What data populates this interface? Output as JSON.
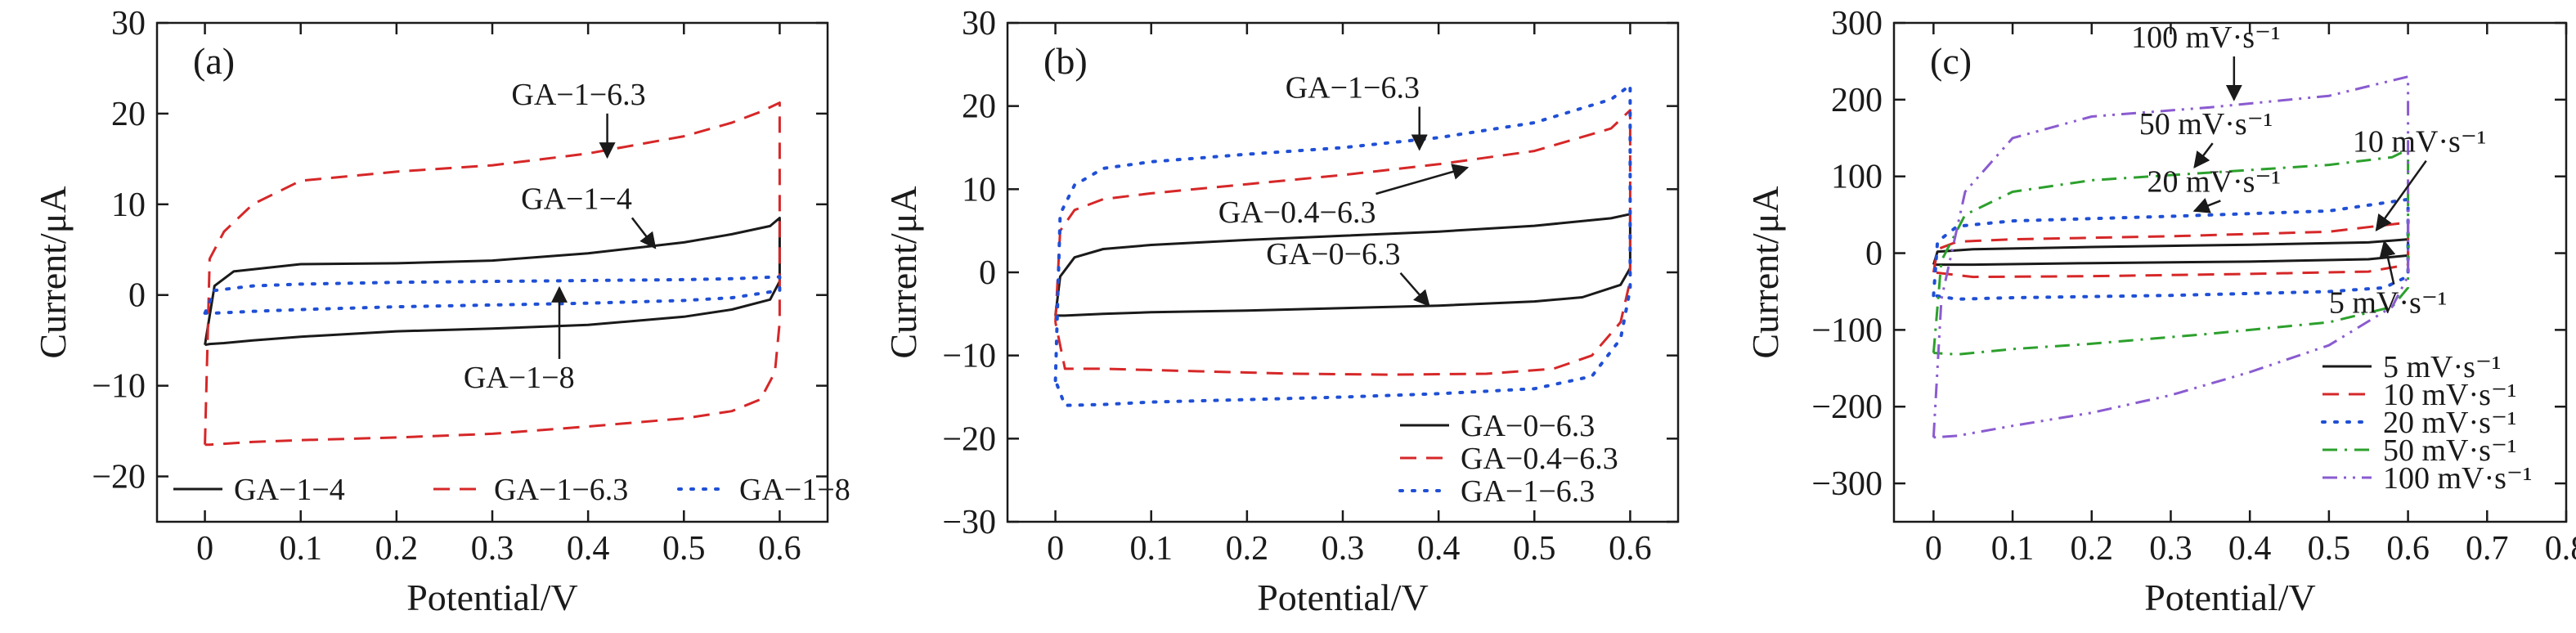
{
  "chart_data": [
    {
      "type": "line",
      "panel": "(a)",
      "xlabel": "Potential/V",
      "ylabel": "Current/μA",
      "xlim": [
        -0.05,
        0.65
      ],
      "ylim": [
        -25,
        30
      ],
      "xticks": [
        0,
        0.1,
        0.2,
        0.3,
        0.4,
        0.5,
        0.6
      ],
      "xtick_labels": [
        "0",
        "0.1",
        "0.2",
        "0.3",
        "0.4",
        "0.5",
        "0.6"
      ],
      "yticks": [
        -20,
        -10,
        0,
        10,
        20,
        30
      ],
      "ytick_labels": [
        "−20",
        "−10",
        "0",
        "10",
        "20",
        "30"
      ],
      "legend_position": "bottom",
      "series": [
        {
          "name": "GA−1−4",
          "color": "#1a1a1a",
          "dash": "solid",
          "x": [
            0,
            0.01,
            0.03,
            0.1,
            0.2,
            0.3,
            0.4,
            0.5,
            0.55,
            0.59,
            0.6,
            0.6,
            0.59,
            0.55,
            0.5,
            0.4,
            0.3,
            0.2,
            0.1,
            0.05,
            0.02,
            0.005,
            0
          ],
          "y": [
            -5.5,
            1.0,
            2.6,
            3.4,
            3.5,
            3.8,
            4.6,
            5.8,
            6.7,
            7.6,
            8.5,
            1.5,
            -0.5,
            -1.6,
            -2.4,
            -3.3,
            -3.7,
            -4.0,
            -4.6,
            -5.0,
            -5.3,
            -5.4,
            -5.5
          ]
        },
        {
          "name": "GA−1−6.3",
          "color": "#d62728",
          "dash": "dashed",
          "x": [
            0,
            0.005,
            0.02,
            0.05,
            0.1,
            0.2,
            0.3,
            0.4,
            0.5,
            0.55,
            0.58,
            0.6,
            0.6,
            0.595,
            0.58,
            0.55,
            0.5,
            0.4,
            0.3,
            0.2,
            0.1,
            0.05,
            0.02,
            0.005,
            0
          ],
          "y": [
            -16.5,
            4.0,
            7.0,
            10.0,
            12.6,
            13.6,
            14.3,
            15.6,
            17.5,
            19.0,
            20.2,
            21.2,
            -3.0,
            -8.5,
            -11.5,
            -12.8,
            -13.6,
            -14.5,
            -15.3,
            -15.7,
            -16.0,
            -16.2,
            -16.4,
            -16.5,
            -16.5
          ]
        },
        {
          "name": "GA−1−8",
          "color": "#1f4fd6",
          "dash": "dotted",
          "x": [
            0,
            0.01,
            0.05,
            0.1,
            0.2,
            0.3,
            0.4,
            0.5,
            0.55,
            0.6,
            0.6,
            0.55,
            0.5,
            0.4,
            0.3,
            0.2,
            0.1,
            0.05,
            0.01,
            0
          ],
          "y": [
            -2.0,
            0.5,
            1.0,
            1.2,
            1.4,
            1.5,
            1.6,
            1.7,
            1.8,
            2.0,
            0.5,
            -0.3,
            -0.6,
            -0.9,
            -1.1,
            -1.3,
            -1.6,
            -1.8,
            -2.0,
            -2.0
          ]
        }
      ],
      "annotations": [
        {
          "text": "GA−1−6.3",
          "x": 0.32,
          "y": 21.0,
          "arrow_to": [
            0.42,
            15.2
          ]
        },
        {
          "text": "GA−1−4",
          "x": 0.33,
          "y": 9.5,
          "arrow_to": [
            0.47,
            5.2
          ]
        },
        {
          "text": "GA−1−8",
          "x": 0.27,
          "y": -10.2,
          "arrow_to": [
            0.37,
            0.8
          ]
        }
      ]
    },
    {
      "type": "line",
      "panel": "(b)",
      "xlabel": "Potential/V",
      "ylabel": "Current/μA",
      "xlim": [
        -0.05,
        0.65
      ],
      "ylim": [
        -30,
        30
      ],
      "xticks": [
        0,
        0.1,
        0.2,
        0.3,
        0.4,
        0.5,
        0.6
      ],
      "xtick_labels": [
        "0",
        "0.1",
        "0.2",
        "0.3",
        "0.4",
        "0.5",
        "0.6"
      ],
      "yticks": [
        -30,
        -20,
        -10,
        0,
        10,
        20,
        30
      ],
      "ytick_labels": [
        "−30",
        "−20",
        "−10",
        "0",
        "10",
        "20",
        "30"
      ],
      "legend_position": "bottom-right",
      "series": [
        {
          "name": "GA−0−6.3",
          "color": "#1a1a1a",
          "dash": "solid",
          "x": [
            0,
            0.005,
            0.02,
            0.05,
            0.1,
            0.2,
            0.3,
            0.4,
            0.5,
            0.58,
            0.6,
            0.6,
            0.59,
            0.55,
            0.5,
            0.4,
            0.3,
            0.2,
            0.1,
            0.05,
            0.01,
            0
          ],
          "y": [
            -5.2,
            -0.5,
            1.8,
            2.8,
            3.3,
            3.9,
            4.4,
            4.9,
            5.6,
            6.5,
            7.0,
            0.5,
            -1.5,
            -3.0,
            -3.5,
            -4.0,
            -4.3,
            -4.6,
            -4.8,
            -5.0,
            -5.2,
            -5.2
          ]
        },
        {
          "name": "GA−0.4−6.3",
          "color": "#d62728",
          "dash": "dashed",
          "x": [
            0,
            0.005,
            0.02,
            0.05,
            0.1,
            0.2,
            0.3,
            0.4,
            0.5,
            0.58,
            0.6,
            0.6,
            0.59,
            0.56,
            0.52,
            0.45,
            0.35,
            0.25,
            0.15,
            0.05,
            0.01,
            0
          ],
          "y": [
            -6.0,
            5.0,
            7.5,
            8.8,
            9.5,
            10.6,
            11.7,
            13.0,
            14.6,
            17.3,
            19.5,
            -1.0,
            -6.0,
            -10.0,
            -11.6,
            -12.2,
            -12.3,
            -12.2,
            -11.9,
            -11.6,
            -11.6,
            -6.0
          ]
        },
        {
          "name": "GA−1−6.3",
          "color": "#1f4fd6",
          "dash": "dotted",
          "x": [
            0,
            0.005,
            0.02,
            0.05,
            0.1,
            0.2,
            0.3,
            0.4,
            0.5,
            0.58,
            0.6,
            0.6,
            0.59,
            0.56,
            0.5,
            0.4,
            0.3,
            0.2,
            0.1,
            0.05,
            0.01,
            0
          ],
          "y": [
            -13.0,
            7.0,
            10.5,
            12.5,
            13.3,
            14.2,
            15.0,
            16.2,
            18.0,
            20.8,
            22.5,
            -2.0,
            -8.0,
            -12.5,
            -14.0,
            -14.6,
            -15.0,
            -15.3,
            -15.6,
            -15.9,
            -16.0,
            -13.0
          ]
        }
      ],
      "annotations": [
        {
          "text": "GA−1−6.3",
          "x": 0.24,
          "y": 21.0,
          "arrow_to": [
            0.38,
            14.8
          ]
        },
        {
          "text": "GA−0.4−6.3",
          "x": 0.17,
          "y": 6.0,
          "arrow_to": [
            0.43,
            12.6
          ]
        },
        {
          "text": "GA−0−6.3",
          "x": 0.22,
          "y": 1.0,
          "arrow_to": [
            0.39,
            -4.0
          ]
        }
      ]
    },
    {
      "type": "line",
      "panel": "(c)",
      "xlabel": "Potential/V",
      "ylabel": "Current/μA",
      "xlim": [
        -0.05,
        0.8
      ],
      "ylim": [
        -350,
        300
      ],
      "xticks": [
        0,
        0.1,
        0.2,
        0.3,
        0.4,
        0.5,
        0.6,
        0.7,
        0.8
      ],
      "xtick_labels": [
        "0",
        "0.1",
        "0.2",
        "0.3",
        "0.4",
        "0.5",
        "0.6",
        "0.7",
        "0.8"
      ],
      "yticks": [
        -300,
        -200,
        -100,
        0,
        100,
        200,
        300
      ],
      "ytick_labels": [
        "−300",
        "−200",
        "−100",
        "0",
        "100",
        "200",
        "300"
      ],
      "legend_position": "bottom-right",
      "series": [
        {
          "name": "5 mV·s⁻¹",
          "color": "#1a1a1a",
          "dash": "solid",
          "x": [
            0,
            0.005,
            0.05,
            0.2,
            0.4,
            0.55,
            0.6,
            0.6,
            0.55,
            0.4,
            0.2,
            0.05,
            0.005,
            0
          ],
          "y": [
            -15,
            2,
            5,
            8,
            11,
            14,
            18,
            -3,
            -8,
            -11,
            -13,
            -15,
            -15,
            -15
          ]
        },
        {
          "name": "10 mV·s⁻¹",
          "color": "#d62728",
          "dash": "dashed",
          "x": [
            0,
            0.005,
            0.03,
            0.1,
            0.3,
            0.5,
            0.6,
            0.6,
            0.55,
            0.4,
            0.2,
            0.05,
            0
          ],
          "y": [
            -25,
            5,
            15,
            18,
            22,
            28,
            40,
            -15,
            -24,
            -27,
            -30,
            -31,
            -25
          ]
        },
        {
          "name": "20 mV·s⁻¹",
          "color": "#1f4fd6",
          "dash": "dotted",
          "x": [
            0,
            0.005,
            0.03,
            0.1,
            0.3,
            0.5,
            0.6,
            0.6,
            0.57,
            0.5,
            0.3,
            0.1,
            0.03,
            0
          ],
          "y": [
            -55,
            15,
            35,
            42,
            48,
            55,
            70,
            -30,
            -45,
            -50,
            -55,
            -58,
            -60,
            -55
          ]
        },
        {
          "name": "50 mV·s⁻¹",
          "color": "#2ca02c",
          "dash": "dashdot",
          "x": [
            0,
            0.01,
            0.04,
            0.1,
            0.2,
            0.35,
            0.5,
            0.58,
            0.6,
            0.6,
            0.58,
            0.5,
            0.35,
            0.2,
            0.1,
            0.03,
            0
          ],
          "y": [
            -130,
            -10,
            50,
            80,
            95,
            105,
            115,
            125,
            135,
            -45,
            -70,
            -90,
            -105,
            -118,
            -125,
            -132,
            -130
          ]
        },
        {
          "name": "100 mV·s⁻¹",
          "color": "#8a5bd0",
          "dash": "dashdotdot",
          "x": [
            0,
            0.01,
            0.04,
            0.1,
            0.2,
            0.35,
            0.5,
            0.58,
            0.6,
            0.6,
            0.58,
            0.5,
            0.4,
            0.3,
            0.2,
            0.1,
            0.03,
            0
          ],
          "y": [
            -240,
            -60,
            80,
            150,
            178,
            190,
            205,
            225,
            230,
            -30,
            -70,
            -120,
            -155,
            -185,
            -208,
            -225,
            -238,
            -240
          ]
        }
      ],
      "annotations": [
        {
          "text": "100 mV·s⁻¹",
          "x": 0.25,
          "y": 268,
          "arrow_to": [
            0.38,
            200
          ]
        },
        {
          "text": "50 mV·s⁻¹",
          "x": 0.26,
          "y": 155,
          "arrow_to": [
            0.33,
            112
          ]
        },
        {
          "text": "20 mV·s⁻¹",
          "x": 0.27,
          "y": 80,
          "arrow_to": [
            0.33,
            55
          ]
        },
        {
          "text": "10 mV·s⁻¹",
          "x": 0.53,
          "y": 132,
          "arrow_to": [
            0.56,
            30
          ]
        },
        {
          "text": "5 mV·s⁻¹",
          "x": 0.5,
          "y": -78,
          "arrow_to": [
            0.57,
            15
          ]
        }
      ]
    }
  ]
}
